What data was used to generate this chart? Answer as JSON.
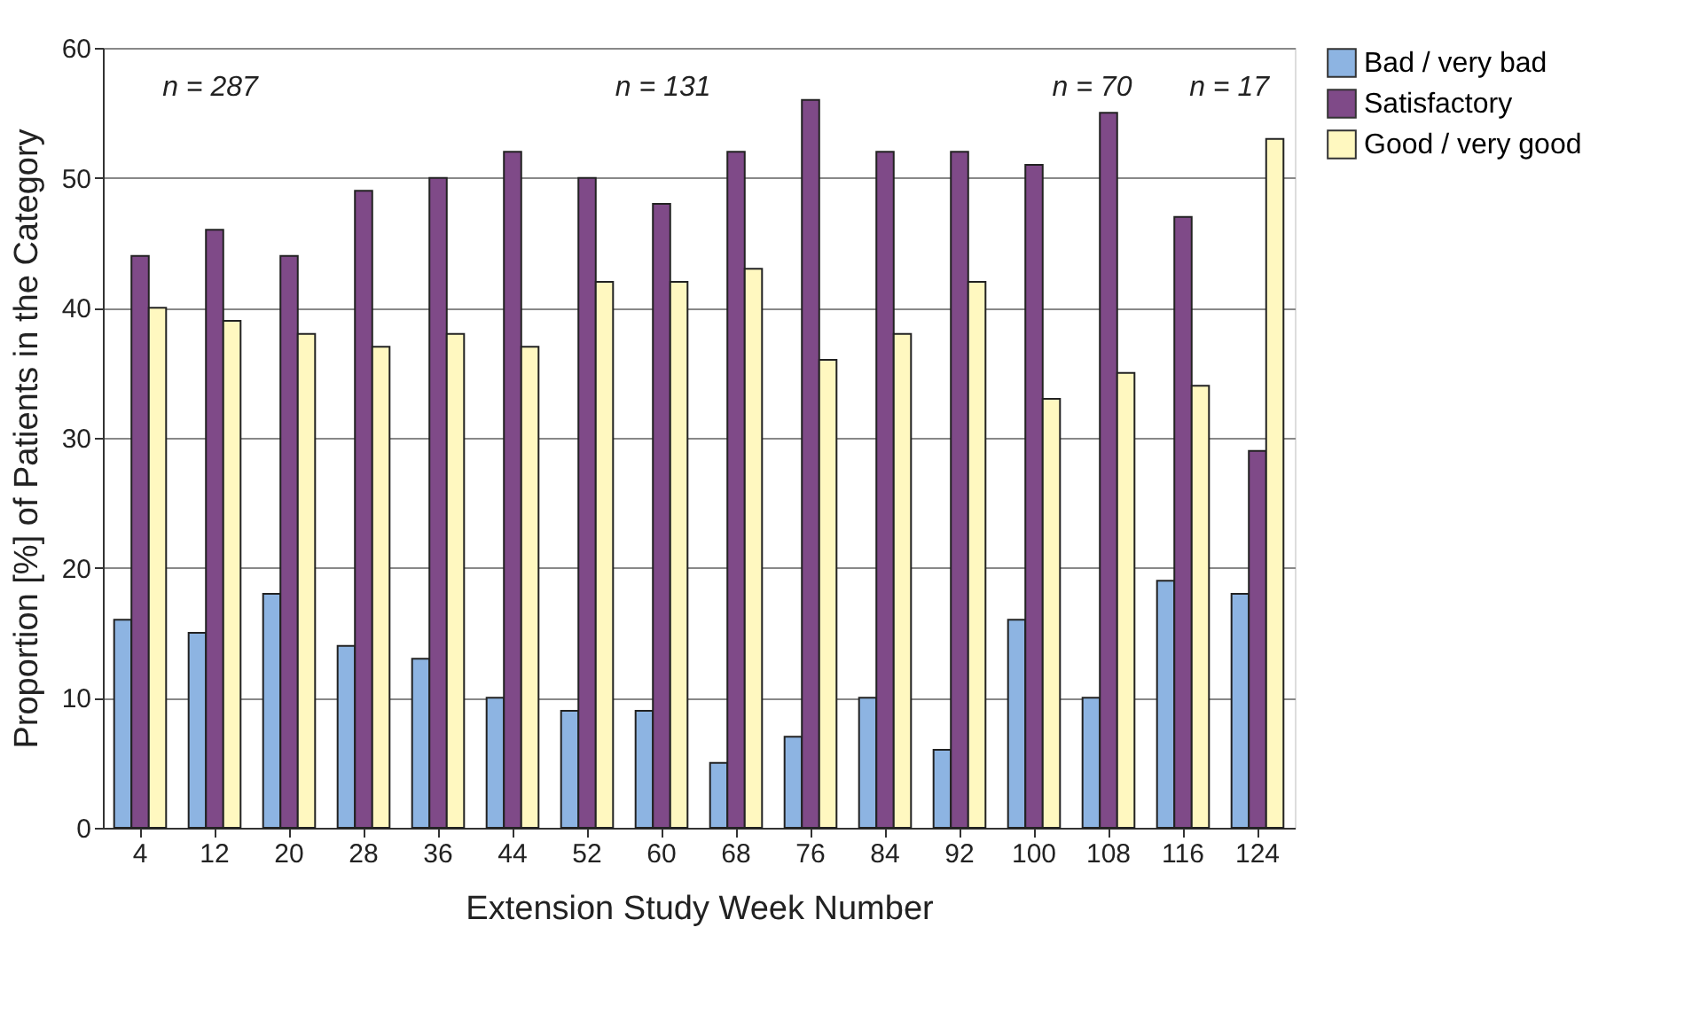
{
  "chart_data": {
    "type": "bar",
    "xlabel": "Extension Study Week Number",
    "ylabel": "Proportion [%] of Patients in the Category",
    "categories": [
      "4",
      "12",
      "20",
      "28",
      "36",
      "44",
      "52",
      "60",
      "68",
      "76",
      "84",
      "92",
      "100",
      "108",
      "116",
      "124"
    ],
    "series": [
      {
        "name": "Bad / very bad",
        "color": "#8db4e2",
        "values": [
          16,
          15,
          18,
          14,
          13,
          10,
          9,
          9,
          5,
          7,
          10,
          6,
          16,
          10,
          19,
          18
        ]
      },
      {
        "name": "Satisfactory",
        "color": "#7f4a88",
        "values": [
          44,
          46,
          44,
          49,
          50,
          52,
          50,
          48,
          52,
          56,
          52,
          52,
          51,
          55,
          47,
          29
        ]
      },
      {
        "name": "Good / very good",
        "color": "#fff8c0",
        "values": [
          40,
          39,
          38,
          37,
          38,
          37,
          42,
          42,
          43,
          36,
          38,
          42,
          33,
          35,
          34,
          53
        ]
      }
    ],
    "ylim": [
      0,
      60
    ],
    "yticks": [
      0,
      10,
      20,
      30,
      40,
      50,
      60
    ],
    "grid": "y",
    "legend": "right",
    "annotations": [
      "n = 287",
      "n = 131",
      "n = 70",
      "n = 17"
    ]
  }
}
